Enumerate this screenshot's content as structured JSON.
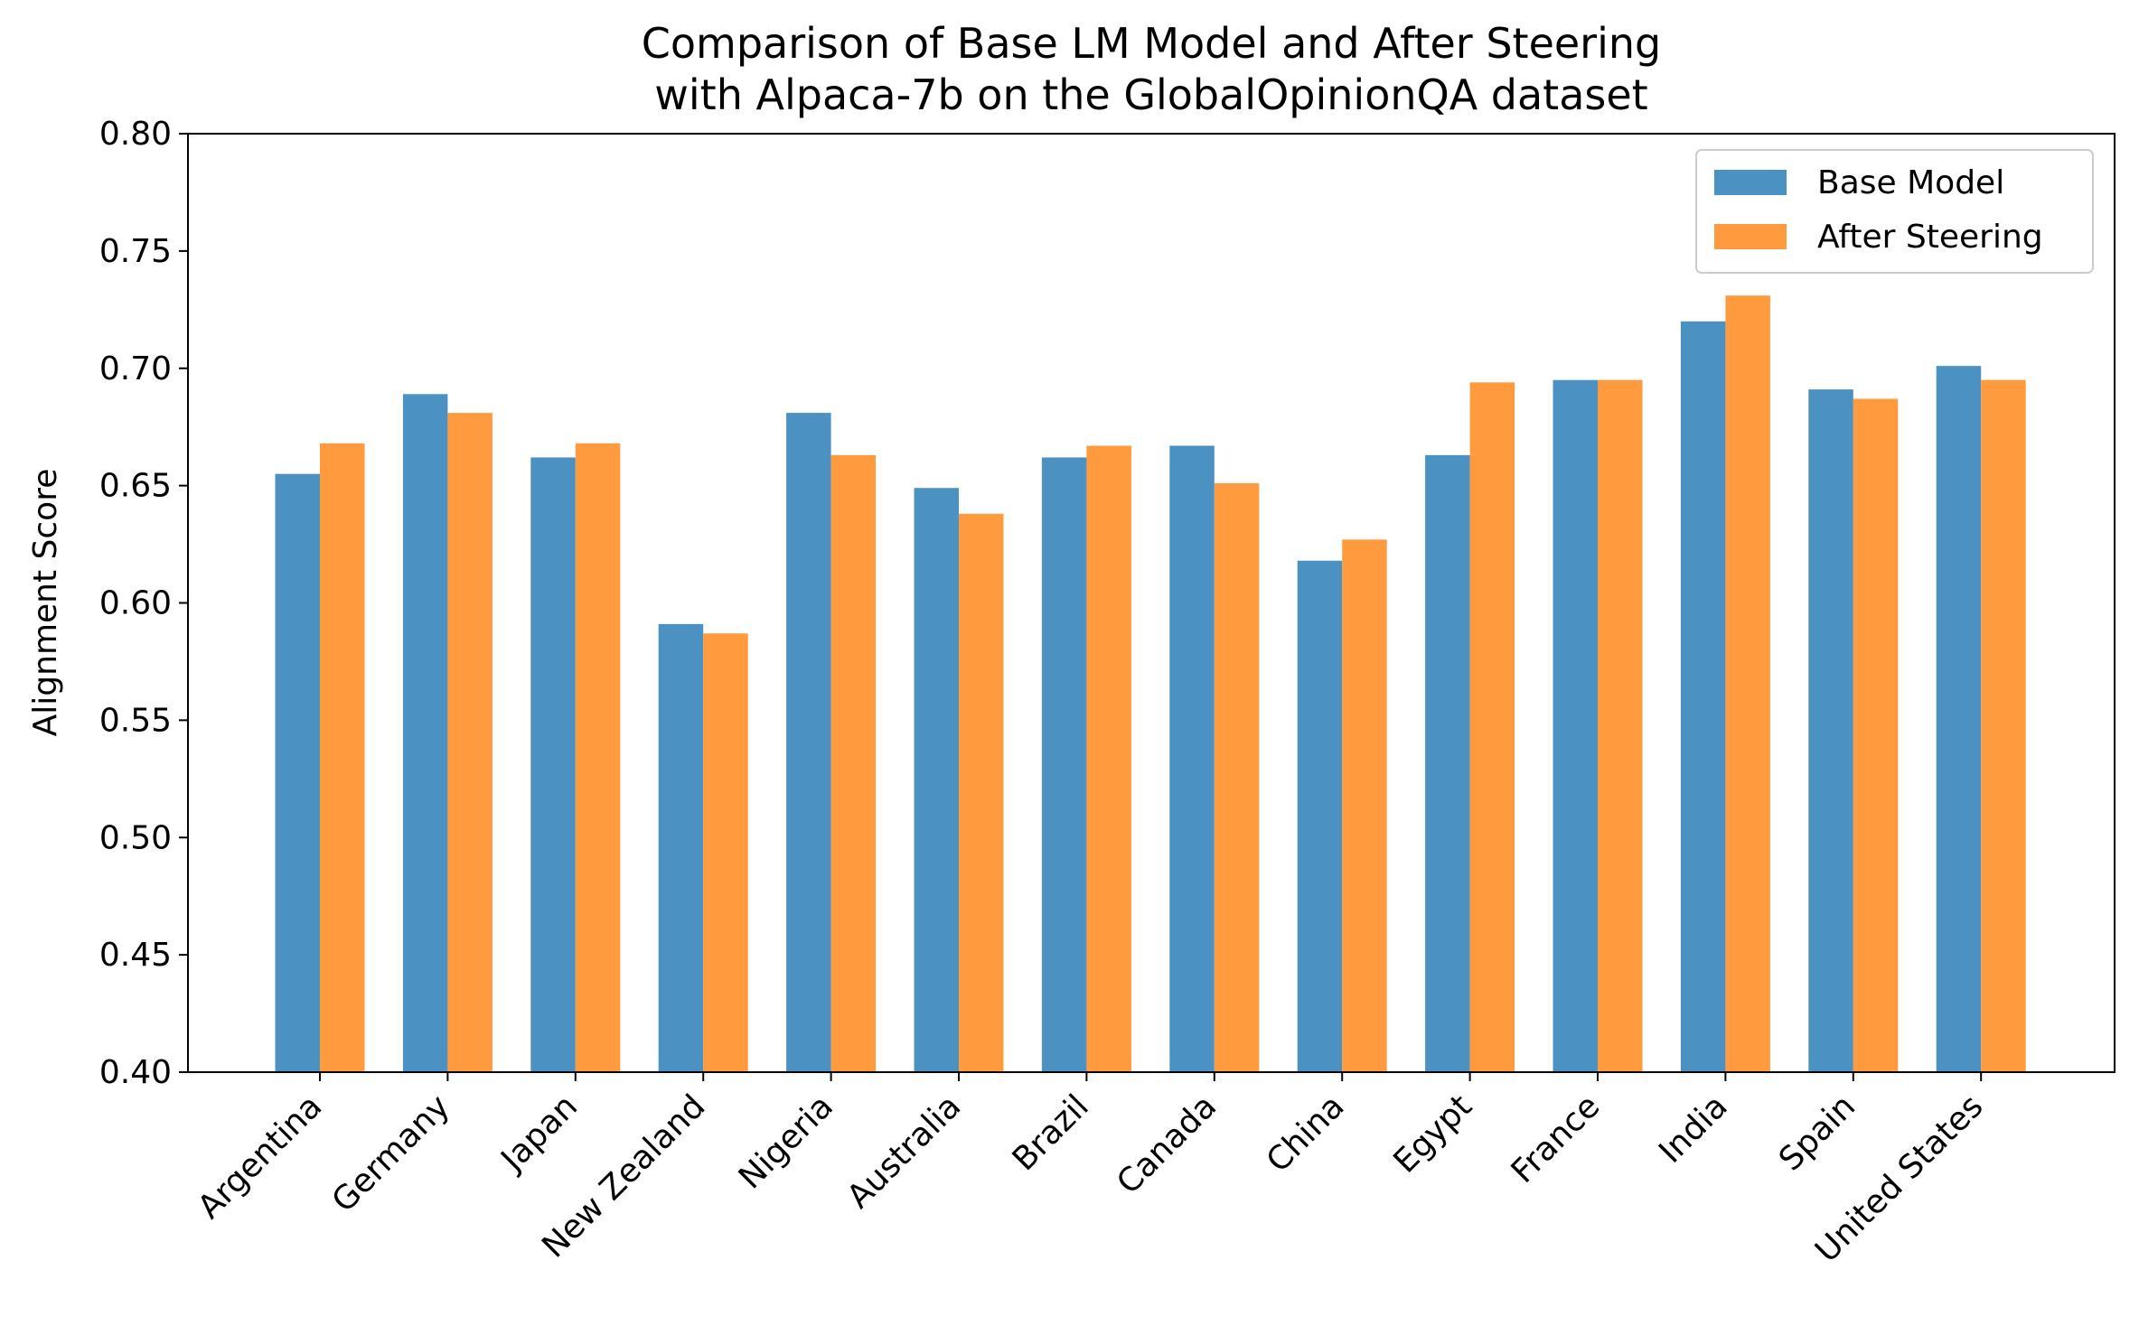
{
  "chart_data": {
    "type": "bar",
    "title": "Comparison of Base LM Model and After Steering",
    "subtitle": "with Alpaca-7b on the GlobalOpinionQA dataset",
    "xlabel": "",
    "ylabel": "Alignment Score",
    "ylim": [
      0.4,
      0.8
    ],
    "yticks": [
      "0.40",
      "0.45",
      "0.50",
      "0.55",
      "0.60",
      "0.65",
      "0.70",
      "0.75",
      "0.80"
    ],
    "categories": [
      "Argentina",
      "Germany",
      "Japan",
      "New Zealand",
      "Nigeria",
      "Australia",
      "Brazil",
      "Canada",
      "China",
      "Egypt",
      "France",
      "India",
      "Spain",
      "United States"
    ],
    "series": [
      {
        "name": "Base Model",
        "color": "#4b91c2",
        "values": [
          0.655,
          0.689,
          0.662,
          0.591,
          0.681,
          0.649,
          0.662,
          0.667,
          0.618,
          0.663,
          0.695,
          0.72,
          0.691,
          0.701
        ]
      },
      {
        "name": "After Steering",
        "color": "#ff9a3e",
        "values": [
          0.668,
          0.681,
          0.668,
          0.587,
          0.663,
          0.638,
          0.667,
          0.651,
          0.627,
          0.694,
          0.695,
          0.731,
          0.687,
          0.695
        ]
      }
    ],
    "grid": false,
    "legend": {
      "position": "top-right"
    }
  }
}
